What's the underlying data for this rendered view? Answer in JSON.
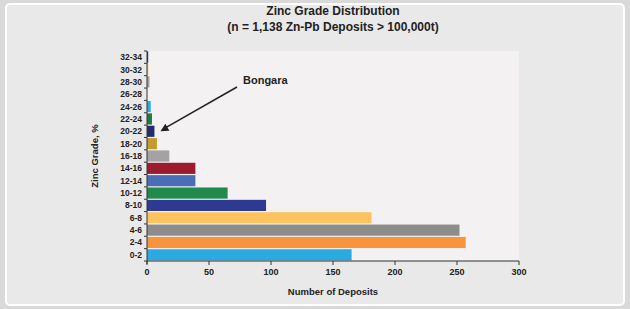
{
  "chart_data": {
    "type": "bar",
    "orientation": "horizontal",
    "title": "Zinc Grade Distribution",
    "subtitle": "(n = 1,138 Zn-Pb Deposits > 100,000t)",
    "x_label": "Number of Deposits",
    "y_label": "Zinc Grade, %",
    "categories": [
      "0-2",
      "2-4",
      "4-6",
      "6-8",
      "8-10",
      "10-12",
      "12-14",
      "14-16",
      "16-18",
      "18-20",
      "20-22",
      "22-24",
      "24-26",
      "26-28",
      "28-30",
      "30-32",
      "32-34"
    ],
    "values": [
      165,
      257,
      252,
      181,
      96,
      65,
      39,
      39,
      18,
      8,
      6,
      4,
      3,
      0,
      2,
      1,
      1
    ],
    "colors": [
      "#29abe2",
      "#f7943d",
      "#8c8c8c",
      "#fdc35f",
      "#2e3a92",
      "#1f8a4c",
      "#4a6db5",
      "#9c1c2e",
      "#a3a3a3",
      "#c49a2c",
      "#222c6e",
      "#1e7b3c",
      "#29abe2",
      "#8c8c8c",
      "#a3a3a3",
      "#fdc35f",
      "#2e3a92"
    ],
    "xlim": [
      0,
      300
    ],
    "xticks": [
      0,
      50,
      100,
      150,
      200,
      250,
      300
    ],
    "grid": false,
    "annotations": [
      {
        "text": "Bongara",
        "category": "20-22"
      }
    ]
  }
}
